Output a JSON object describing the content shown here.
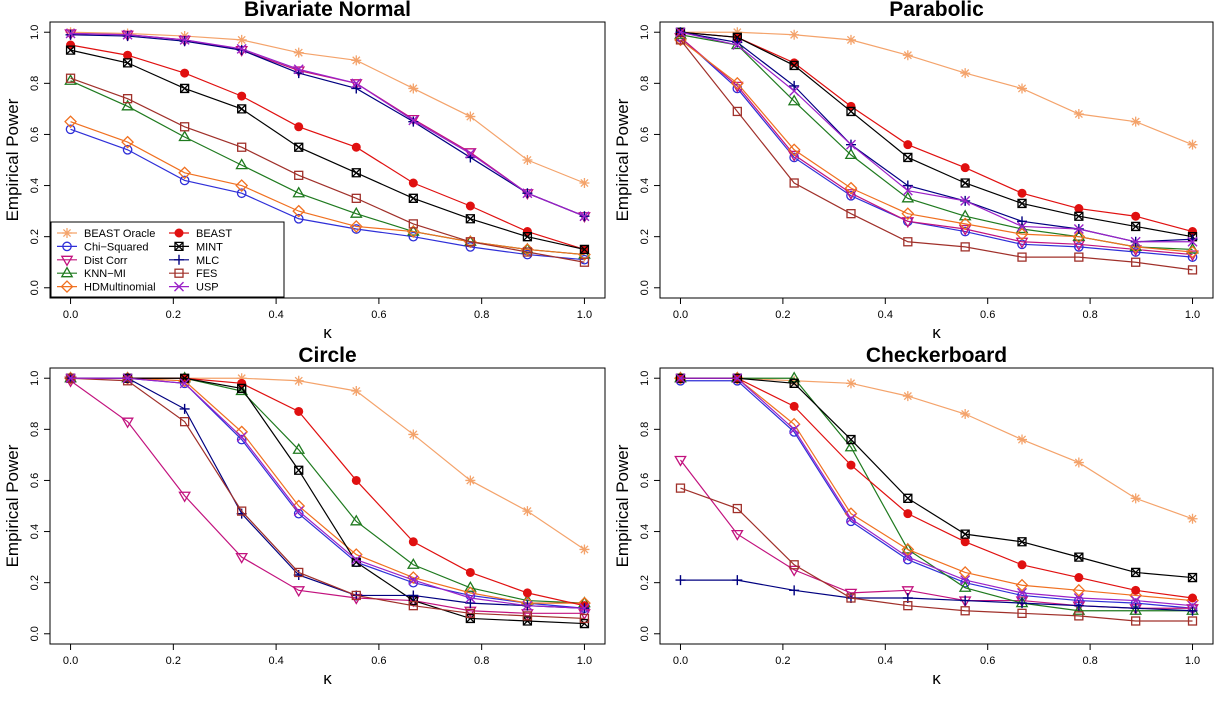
{
  "figure": {
    "ylabel": "Empirical Power",
    "xlabel": "κ"
  },
  "legend_entries": [
    {
      "name": "BEAST Oracle",
      "color": "#F4A36B",
      "marker": "star"
    },
    {
      "name": "Chi−Squared",
      "color": "#2F2FD8",
      "marker": "circle-open"
    },
    {
      "name": "Dist Corr",
      "color": "#C2127E",
      "marker": "tri-down"
    },
    {
      "name": "KNN−MI",
      "color": "#1F7A1F",
      "marker": "tri-up"
    },
    {
      "name": "HDMultinomial",
      "color": "#F07020",
      "marker": "diamond"
    },
    {
      "name": "BEAST",
      "color": "#E01010",
      "marker": "circle-filled"
    },
    {
      "name": "MINT",
      "color": "#000000",
      "marker": "box-x"
    },
    {
      "name": "MLC",
      "color": "#000080",
      "marker": "plus"
    },
    {
      "name": "FES",
      "color": "#A0302A",
      "marker": "square-open"
    },
    {
      "name": "USP",
      "color": "#9B22C8",
      "marker": "cross"
    }
  ],
  "chart_data": [
    {
      "type": "line",
      "title": "Bivariate Normal",
      "xlabel": "κ",
      "ylabel": "Empirical Power",
      "xlim": [
        0,
        1
      ],
      "ylim": [
        0,
        1
      ],
      "xticks": [
        "0.0",
        "0.2",
        "0.4",
        "0.6",
        "0.8",
        "1.0"
      ],
      "yticks": [
        "0.0",
        "0.2",
        "0.4",
        "0.6",
        "0.8",
        "1.0"
      ],
      "legend": "bottom-left",
      "x": [
        0,
        0.111,
        0.222,
        0.333,
        0.444,
        0.556,
        0.667,
        0.778,
        0.889,
        1.0
      ],
      "series": [
        {
          "name": "BEAST Oracle",
          "values": [
            1.0,
            0.995,
            0.985,
            0.97,
            0.92,
            0.89,
            0.78,
            0.67,
            0.5,
            0.41
          ]
        },
        {
          "name": "Chi−Squared",
          "values": [
            0.62,
            0.54,
            0.42,
            0.37,
            0.27,
            0.23,
            0.2,
            0.16,
            0.13,
            0.11
          ]
        },
        {
          "name": "Dist Corr",
          "values": [
            0.995,
            0.99,
            0.97,
            0.93,
            0.85,
            0.8,
            0.66,
            0.53,
            0.37,
            0.28
          ]
        },
        {
          "name": "KNN−MI",
          "values": [
            0.81,
            0.71,
            0.59,
            0.48,
            0.37,
            0.29,
            0.22,
            0.18,
            0.15,
            0.13
          ]
        },
        {
          "name": "HDMultinomial",
          "values": [
            0.65,
            0.57,
            0.45,
            0.4,
            0.3,
            0.24,
            0.22,
            0.18,
            0.15,
            0.13
          ]
        },
        {
          "name": "BEAST",
          "values": [
            0.95,
            0.91,
            0.84,
            0.75,
            0.63,
            0.55,
            0.41,
            0.32,
            0.22,
            0.15
          ]
        },
        {
          "name": "MINT",
          "values": [
            0.93,
            0.88,
            0.78,
            0.7,
            0.55,
            0.45,
            0.35,
            0.27,
            0.2,
            0.15
          ]
        },
        {
          "name": "MLC",
          "values": [
            0.99,
            0.985,
            0.965,
            0.93,
            0.84,
            0.78,
            0.65,
            0.51,
            0.37,
            0.28
          ]
        },
        {
          "name": "FES",
          "values": [
            0.82,
            0.74,
            0.63,
            0.55,
            0.44,
            0.35,
            0.25,
            0.18,
            0.14,
            0.1
          ]
        },
        {
          "name": "USP",
          "values": [
            0.995,
            0.99,
            0.97,
            0.935,
            0.855,
            0.8,
            0.655,
            0.525,
            0.37,
            0.28
          ]
        }
      ]
    },
    {
      "type": "line",
      "title": "Parabolic",
      "xlabel": "κ",
      "ylabel": "Empirical Power",
      "xlim": [
        0,
        1
      ],
      "ylim": [
        0,
        1
      ],
      "xticks": [
        "0.0",
        "0.2",
        "0.4",
        "0.6",
        "0.8",
        "1.0"
      ],
      "yticks": [
        "0.0",
        "0.2",
        "0.4",
        "0.6",
        "0.8",
        "1.0"
      ],
      "x": [
        0,
        0.111,
        0.222,
        0.333,
        0.444,
        0.556,
        0.667,
        0.778,
        0.889,
        1.0
      ],
      "series": [
        {
          "name": "BEAST Oracle",
          "values": [
            1.0,
            1.0,
            0.99,
            0.97,
            0.91,
            0.84,
            0.78,
            0.68,
            0.65,
            0.56
          ]
        },
        {
          "name": "Chi−Squared",
          "values": [
            0.98,
            0.78,
            0.51,
            0.36,
            0.26,
            0.22,
            0.17,
            0.16,
            0.14,
            0.12
          ]
        },
        {
          "name": "Dist Corr",
          "values": [
            0.98,
            0.79,
            0.52,
            0.37,
            0.26,
            0.23,
            0.18,
            0.17,
            0.15,
            0.13
          ]
        },
        {
          "name": "KNN−MI",
          "values": [
            0.99,
            0.95,
            0.73,
            0.52,
            0.35,
            0.28,
            0.23,
            0.2,
            0.16,
            0.15
          ]
        },
        {
          "name": "HDMultinomial",
          "values": [
            0.97,
            0.8,
            0.54,
            0.39,
            0.29,
            0.25,
            0.21,
            0.2,
            0.16,
            0.14
          ]
        },
        {
          "name": "BEAST",
          "values": [
            1.0,
            0.98,
            0.88,
            0.71,
            0.56,
            0.47,
            0.37,
            0.31,
            0.28,
            0.22
          ]
        },
        {
          "name": "MINT",
          "values": [
            1.0,
            0.98,
            0.87,
            0.69,
            0.51,
            0.41,
            0.33,
            0.28,
            0.24,
            0.2
          ]
        },
        {
          "name": "MLC",
          "values": [
            1.0,
            0.96,
            0.79,
            0.56,
            0.4,
            0.34,
            0.26,
            0.23,
            0.18,
            0.19
          ]
        },
        {
          "name": "FES",
          "values": [
            0.97,
            0.69,
            0.41,
            0.29,
            0.18,
            0.16,
            0.12,
            0.12,
            0.1,
            0.07
          ]
        },
        {
          "name": "USP",
          "values": [
            1.0,
            0.95,
            0.77,
            0.56,
            0.38,
            0.34,
            0.24,
            0.23,
            0.18,
            0.18
          ]
        }
      ]
    },
    {
      "type": "line",
      "title": "Circle",
      "xlabel": "κ",
      "ylabel": "Empirical Power",
      "xlim": [
        0,
        1
      ],
      "ylim": [
        0,
        1
      ],
      "xticks": [
        "0.0",
        "0.2",
        "0.4",
        "0.6",
        "0.8",
        "1.0"
      ],
      "yticks": [
        "0.0",
        "0.2",
        "0.4",
        "0.6",
        "0.8",
        "1.0"
      ],
      "x": [
        0,
        0.111,
        0.222,
        0.333,
        0.444,
        0.556,
        0.667,
        0.778,
        0.889,
        1.0
      ],
      "series": [
        {
          "name": "BEAST Oracle",
          "values": [
            1.0,
            1.0,
            1.0,
            1.0,
            0.99,
            0.95,
            0.78,
            0.6,
            0.48,
            0.33
          ]
        },
        {
          "name": "Chi−Squared",
          "values": [
            1.0,
            1.0,
            0.98,
            0.76,
            0.47,
            0.28,
            0.2,
            0.15,
            0.12,
            0.1
          ]
        },
        {
          "name": "Dist Corr",
          "values": [
            0.99,
            0.83,
            0.54,
            0.3,
            0.17,
            0.14,
            0.13,
            0.09,
            0.08,
            0.08
          ]
        },
        {
          "name": "KNN−MI",
          "values": [
            1.0,
            1.0,
            1.0,
            0.95,
            0.72,
            0.44,
            0.27,
            0.18,
            0.13,
            0.12
          ]
        },
        {
          "name": "HDMultinomial",
          "values": [
            1.0,
            1.0,
            0.99,
            0.79,
            0.5,
            0.31,
            0.22,
            0.16,
            0.12,
            0.12
          ]
        },
        {
          "name": "BEAST",
          "values": [
            1.0,
            1.0,
            1.0,
            0.98,
            0.87,
            0.6,
            0.36,
            0.24,
            0.16,
            0.11
          ]
        },
        {
          "name": "MINT",
          "values": [
            1.0,
            1.0,
            1.0,
            0.96,
            0.64,
            0.28,
            0.13,
            0.06,
            0.05,
            0.04
          ]
        },
        {
          "name": "MLC",
          "values": [
            1.0,
            1.0,
            0.88,
            0.47,
            0.23,
            0.15,
            0.15,
            0.12,
            0.11,
            0.1
          ]
        },
        {
          "name": "FES",
          "values": [
            1.0,
            0.99,
            0.83,
            0.48,
            0.24,
            0.15,
            0.11,
            0.08,
            0.07,
            0.06
          ]
        },
        {
          "name": "USP",
          "values": [
            1.0,
            1.0,
            0.98,
            0.77,
            0.48,
            0.29,
            0.21,
            0.14,
            0.11,
            0.1
          ]
        }
      ]
    },
    {
      "type": "line",
      "title": "Checkerboard",
      "xlabel": "κ",
      "ylabel": "Empirical Power",
      "xlim": [
        0,
        1
      ],
      "ylim": [
        0,
        1
      ],
      "xticks": [
        "0.0",
        "0.2",
        "0.4",
        "0.6",
        "0.8",
        "1.0"
      ],
      "yticks": [
        "0.0",
        "0.2",
        "0.4",
        "0.6",
        "0.8",
        "1.0"
      ],
      "x": [
        0,
        0.111,
        0.222,
        0.333,
        0.444,
        0.556,
        0.667,
        0.778,
        0.889,
        1.0
      ],
      "series": [
        {
          "name": "BEAST Oracle",
          "values": [
            1.0,
            1.0,
            0.99,
            0.98,
            0.93,
            0.86,
            0.76,
            0.67,
            0.53,
            0.45
          ]
        },
        {
          "name": "Chi−Squared",
          "values": [
            0.99,
            0.99,
            0.79,
            0.44,
            0.29,
            0.2,
            0.15,
            0.13,
            0.12,
            0.1
          ]
        },
        {
          "name": "Dist Corr",
          "values": [
            0.68,
            0.39,
            0.25,
            0.16,
            0.17,
            0.13,
            0.13,
            0.11,
            0.1,
            0.1
          ]
        },
        {
          "name": "KNN−MI",
          "values": [
            1.0,
            1.0,
            1.0,
            0.73,
            0.33,
            0.18,
            0.12,
            0.09,
            0.09,
            0.09
          ]
        },
        {
          "name": "HDMultinomial",
          "values": [
            1.0,
            1.0,
            0.82,
            0.47,
            0.33,
            0.24,
            0.19,
            0.17,
            0.15,
            0.13
          ]
        },
        {
          "name": "BEAST",
          "values": [
            1.0,
            1.0,
            0.89,
            0.66,
            0.47,
            0.36,
            0.27,
            0.22,
            0.17,
            0.14
          ]
        },
        {
          "name": "MINT",
          "values": [
            1.0,
            1.0,
            0.98,
            0.76,
            0.53,
            0.39,
            0.36,
            0.3,
            0.24,
            0.22
          ]
        },
        {
          "name": "MLC",
          "values": [
            0.21,
            0.21,
            0.17,
            0.14,
            0.14,
            0.13,
            0.12,
            0.11,
            0.1,
            0.09
          ]
        },
        {
          "name": "FES",
          "values": [
            0.57,
            0.49,
            0.27,
            0.14,
            0.11,
            0.09,
            0.08,
            0.07,
            0.05,
            0.05
          ]
        },
        {
          "name": "USP",
          "values": [
            1.0,
            1.0,
            0.8,
            0.45,
            0.3,
            0.21,
            0.16,
            0.14,
            0.13,
            0.11
          ]
        }
      ]
    }
  ]
}
